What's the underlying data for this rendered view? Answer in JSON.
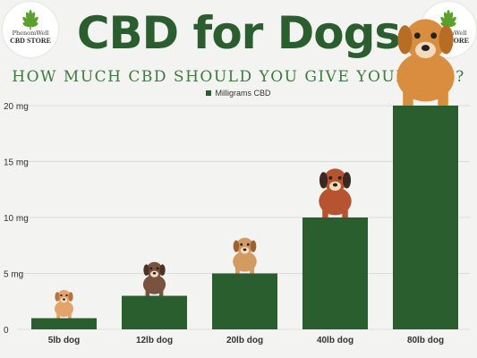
{
  "header": {
    "title": "CBD for Dogs",
    "subtitle": "HOW MUCH CBD SHOULD YOU GIVE YOUR DOG?"
  },
  "logo": {
    "brand": "PhenomWell",
    "store": "CBD STORE",
    "icon": "cannabis-leaf-icon"
  },
  "colors": {
    "bar": "#2b5e2f",
    "title": "#2b5e2f",
    "subtitle": "#3c7a3e",
    "grid": "#dcdcdc",
    "leaf": "#5aa02c"
  },
  "chart_data": {
    "type": "bar",
    "categories": [
      "5lb dog",
      "12lb dog",
      "20lb dog",
      "40lb dog",
      "80lb dog"
    ],
    "series": [
      {
        "name": "Milligrams CBD",
        "values": [
          1,
          3,
          5,
          10,
          20
        ]
      }
    ],
    "ylim": [
      0,
      20
    ],
    "yticks": [
      0,
      5,
      10,
      15,
      20
    ],
    "ytick_labels": [
      "0",
      "5 mg",
      "10 mg",
      "15 mg",
      "20 mg"
    ],
    "legend": "top-center",
    "grid": true,
    "dog_icons": [
      "small-dog-icon",
      "chihuahua-icon",
      "beagle-puppy-icon",
      "pug-icon",
      "golden-retriever-icon"
    ]
  }
}
